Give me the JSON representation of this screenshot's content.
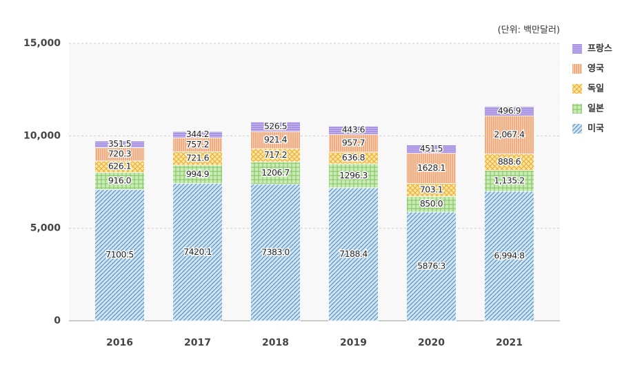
{
  "chart_data": {
    "type": "stacked_bar",
    "unit_note": "(단위: 백만달러)",
    "categories": [
      "2016",
      "2017",
      "2018",
      "2019",
      "2020",
      "2021"
    ],
    "ylim": [
      0,
      15000
    ],
    "yticks": [
      0,
      {
        "value": 5000,
        "label": "5,000"
      },
      {
        "value": 10000,
        "label": "10,000"
      },
      {
        "value": 15000,
        "label": "15,000"
      }
    ],
    "grid": true,
    "legend": "right",
    "series": [
      {
        "name": "미국",
        "color": "#c9e6f7",
        "values": [
          7100.5,
          7420.1,
          7383.0,
          7188.4,
          5876.3,
          6994.8
        ],
        "value_labels": [
          "7100.5",
          "7420.1",
          "7383.0",
          "7188.4",
          "5876.3",
          "6,994.8"
        ]
      },
      {
        "name": "일본",
        "color": "#c9ecb4",
        "values": [
          916.0,
          994.9,
          1206.7,
          1296.3,
          850.0,
          1135.2
        ],
        "value_labels": [
          "916.0",
          "994.9",
          "1206.7",
          "1296.3",
          "850.0",
          "1,135.2"
        ]
      },
      {
        "name": "독일",
        "color": "#fde59a",
        "values": [
          626.1,
          721.6,
          717.2,
          636.8,
          703.1,
          888.6
        ],
        "value_labels": [
          "626.1",
          "721.6",
          "717.2",
          "636.8",
          "703.1",
          "888.6"
        ]
      },
      {
        "name": "영국",
        "color": "#fbd3b8",
        "values": [
          720.3,
          757.2,
          921.4,
          957.7,
          1628.1,
          2067.4
        ],
        "value_labels": [
          "720.3",
          "757.2",
          "921.4",
          "957.7",
          "1628.1",
          "2,067.4"
        ]
      },
      {
        "name": "프랑스",
        "color": "#c7b7ef",
        "values": [
          351.5,
          344.2,
          526.5,
          443.6,
          451.5,
          496.9
        ],
        "value_labels": [
          "351.5",
          "344.2",
          "526.5",
          "443.6",
          "451.5",
          "496.9"
        ]
      }
    ]
  }
}
